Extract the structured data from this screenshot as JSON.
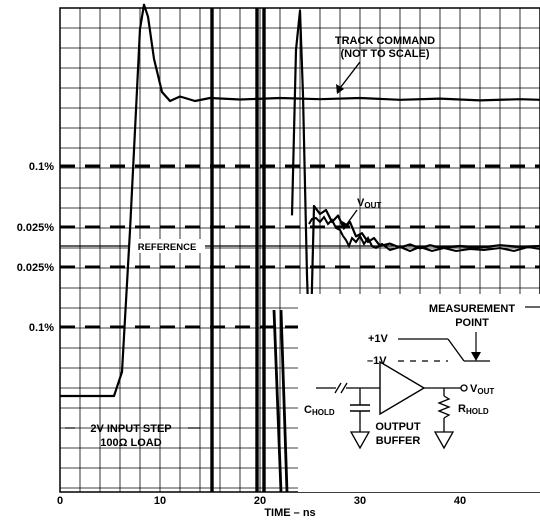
{
  "chart_data": {
    "type": "line",
    "title": "",
    "xlabel": "TIME – ns",
    "ylabel": "",
    "xlim": [
      0,
      48
    ],
    "x_ticks": [
      "0",
      "10",
      "20",
      "30",
      "40"
    ],
    "grid": true,
    "y_level_labels": [
      {
        "label": "0.1%",
        "level": "+0.1%"
      },
      {
        "label": "0.025%",
        "level": "+0.025%"
      },
      {
        "label": "0.025%",
        "level": "-0.025%"
      },
      {
        "label": "0.1%",
        "level": "-0.1%"
      }
    ],
    "reference_label": "REFERENCE",
    "series": [
      {
        "name": "TRACK COMMAND",
        "x": [
          0,
          5.4,
          6.2,
          7.0,
          7.6,
          8.0,
          8.4,
          8.8,
          9.4,
          10.2,
          11.0,
          12.0,
          13.5,
          15,
          18,
          22,
          26,
          30,
          34,
          38,
          42,
          46,
          48
        ],
        "y": [
          0,
          0,
          8,
          55,
          95,
          122,
          130,
          126,
          112,
          101,
          98,
          99.5,
          98,
          99,
          98.5,
          99,
          98.6,
          99,
          98.4,
          98.8,
          98.2,
          98.6,
          98.4
        ]
      },
      {
        "name": "VOUT",
        "x": [
          23.2,
          23.6,
          24.0,
          24.3,
          24.7,
          25.0,
          25.4,
          26.0,
          26.6,
          27.2,
          27.8,
          28.4,
          29.0,
          29.6,
          30.2,
          30.8,
          31.4,
          32,
          33,
          34,
          35,
          36,
          37,
          38,
          40,
          42,
          44,
          46,
          48
        ],
        "y": [
          60,
          115,
          128,
          100,
          40,
          10,
          0.05,
          0.04,
          0.045,
          0.03,
          0.038,
          0.022,
          0.03,
          0.012,
          0.016,
          0.005,
          0.01,
          0.0,
          0.003,
          -0.002,
          0.002,
          -0.003,
          0.001,
          -0.002,
          0.0,
          -0.002,
          0.001,
          -0.001,
          0.0
        ]
      }
    ],
    "annotations": [
      "TRACK COMMAND",
      "(NOT TO SCALE)",
      "VOUT",
      "2V INPUT STEP",
      "100Ω LOAD"
    ]
  },
  "inset": {
    "measurement_label_1": "MEASUREMENT",
    "measurement_label_2": "POINT",
    "plus_1v": "+1V",
    "minus_1v": "–1V",
    "vout_main": "V",
    "vout_sub": "OUT",
    "chold_main": "C",
    "chold_sub": "HOLD",
    "rhold_main": "R",
    "rhold_sub": "HOLD",
    "output_label": "OUTPUT",
    "buffer_label": "BUFFER"
  }
}
